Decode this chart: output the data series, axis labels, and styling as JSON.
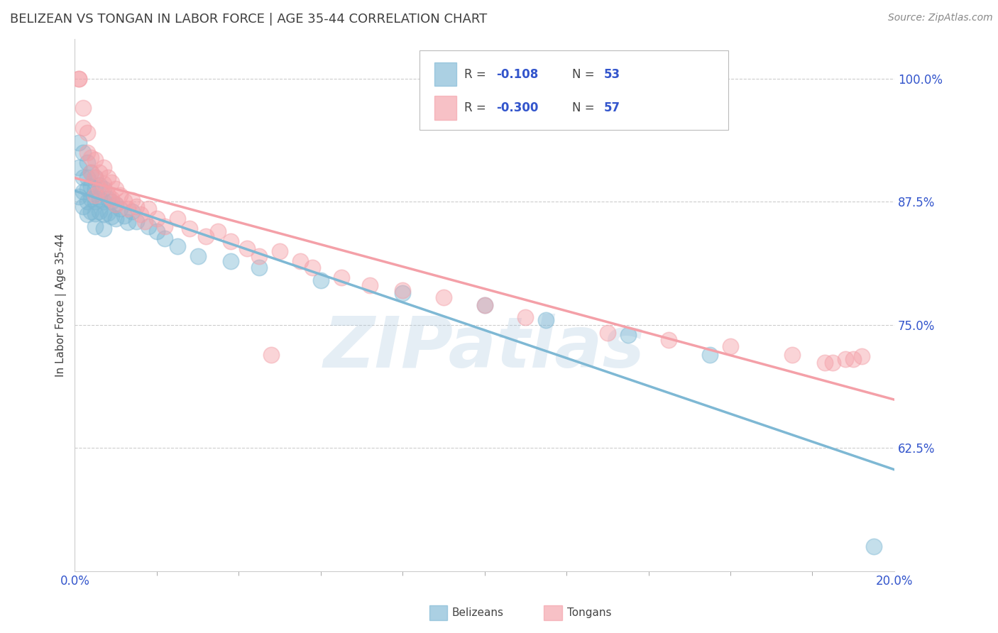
{
  "title": "BELIZEAN VS TONGAN IN LABOR FORCE | AGE 35-44 CORRELATION CHART",
  "source_text": "Source: ZipAtlas.com",
  "ylabel": "In Labor Force | Age 35-44",
  "xlim": [
    0.0,
    0.2
  ],
  "ylim": [
    0.5,
    1.04
  ],
  "xticks": [
    0.0,
    0.2
  ],
  "xtick_labels": [
    "0.0%",
    "20.0%"
  ],
  "yticks_right": [
    0.625,
    0.75,
    0.875,
    1.0
  ],
  "ytick_right_labels": [
    "62.5%",
    "75.0%",
    "87.5%",
    "100.0%"
  ],
  "blue_R": -0.108,
  "blue_N": 53,
  "pink_R": -0.3,
  "pink_N": 57,
  "blue_color": "#7EB8D4",
  "pink_color": "#F4A0A8",
  "title_color": "#404040",
  "source_color": "#888888",
  "axis_label_color": "#404040",
  "tick_color": "#3355cc",
  "background_color": "#ffffff",
  "grid_color": "#cccccc",
  "blue_x": [
    0.001,
    0.001,
    0.001,
    0.002,
    0.002,
    0.002,
    0.002,
    0.003,
    0.003,
    0.003,
    0.003,
    0.003,
    0.004,
    0.004,
    0.004,
    0.004,
    0.005,
    0.005,
    0.005,
    0.005,
    0.005,
    0.006,
    0.006,
    0.006,
    0.007,
    0.007,
    0.007,
    0.007,
    0.008,
    0.008,
    0.009,
    0.009,
    0.01,
    0.01,
    0.011,
    0.012,
    0.013,
    0.014,
    0.015,
    0.018,
    0.02,
    0.022,
    0.025,
    0.03,
    0.038,
    0.045,
    0.06,
    0.08,
    0.1,
    0.115,
    0.135,
    0.155,
    0.195
  ],
  "blue_y": [
    0.935,
    0.91,
    0.88,
    0.925,
    0.9,
    0.885,
    0.87,
    0.915,
    0.9,
    0.888,
    0.875,
    0.862,
    0.905,
    0.89,
    0.878,
    0.865,
    0.9,
    0.888,
    0.875,
    0.863,
    0.85,
    0.892,
    0.878,
    0.865,
    0.888,
    0.875,
    0.862,
    0.848,
    0.878,
    0.864,
    0.875,
    0.86,
    0.872,
    0.858,
    0.868,
    0.861,
    0.854,
    0.865,
    0.855,
    0.85,
    0.845,
    0.838,
    0.83,
    0.82,
    0.815,
    0.808,
    0.795,
    0.782,
    0.77,
    0.755,
    0.74,
    0.72,
    0.525
  ],
  "pink_x": [
    0.001,
    0.001,
    0.002,
    0.002,
    0.003,
    0.003,
    0.004,
    0.004,
    0.005,
    0.005,
    0.005,
    0.006,
    0.006,
    0.007,
    0.007,
    0.008,
    0.008,
    0.009,
    0.009,
    0.01,
    0.01,
    0.011,
    0.012,
    0.013,
    0.014,
    0.015,
    0.016,
    0.017,
    0.018,
    0.02,
    0.022,
    0.025,
    0.028,
    0.032,
    0.035,
    0.038,
    0.042,
    0.045,
    0.05,
    0.055,
    0.058,
    0.065,
    0.072,
    0.08,
    0.09,
    0.1,
    0.11,
    0.13,
    0.145,
    0.16,
    0.175,
    0.183,
    0.185,
    0.188,
    0.19,
    0.192,
    0.048
  ],
  "pink_y": [
    1.0,
    1.0,
    0.97,
    0.95,
    0.945,
    0.925,
    0.92,
    0.905,
    0.918,
    0.9,
    0.882,
    0.905,
    0.888,
    0.91,
    0.893,
    0.9,
    0.882,
    0.895,
    0.878,
    0.888,
    0.872,
    0.882,
    0.876,
    0.868,
    0.877,
    0.87,
    0.862,
    0.855,
    0.868,
    0.858,
    0.85,
    0.858,
    0.848,
    0.84,
    0.845,
    0.835,
    0.828,
    0.82,
    0.825,
    0.815,
    0.808,
    0.798,
    0.79,
    0.785,
    0.778,
    0.77,
    0.758,
    0.742,
    0.735,
    0.728,
    0.72,
    0.712,
    0.712,
    0.715,
    0.715,
    0.718,
    0.72
  ],
  "watermark_text": "ZIPatlas",
  "watermark_color": "#aac8e0",
  "watermark_alpha": 0.3
}
